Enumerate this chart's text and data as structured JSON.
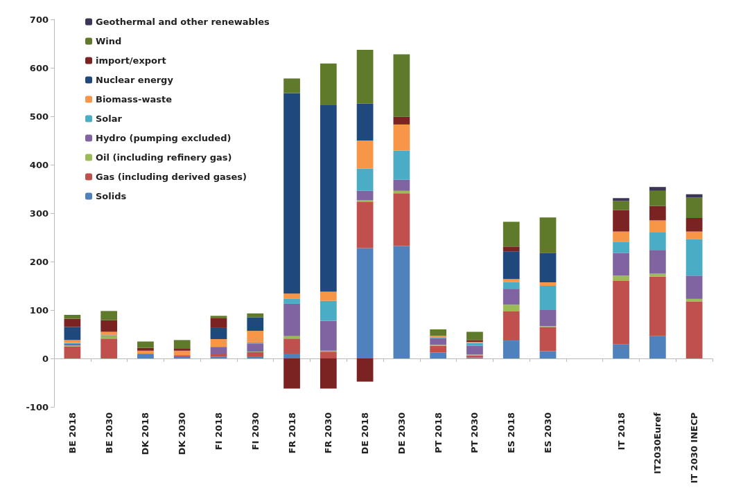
{
  "chart_data": {
    "type": "bar",
    "stacked": true,
    "legend": "top left",
    "categories": [
      "BE 2018",
      "BE 2030",
      "DK 2018",
      "DK 2030",
      "FI 2018",
      "FI 2030",
      "FR 2018",
      "FR 2030",
      "DE 2018",
      "DE 2030",
      "PT 2018",
      "PT 2030",
      "ES 2018",
      "ES 2030",
      null,
      "IT 2018",
      "IT2030Euref",
      "IT 2030 INECP"
    ],
    "ylim": [
      -100,
      700
    ],
    "yticks": [
      -100,
      0,
      100,
      200,
      300,
      400,
      500,
      600,
      700
    ],
    "series": [
      {
        "name": "Solids",
        "color": "#4f81bd",
        "values": [
          0,
          0,
          9,
          3,
          4,
          3,
          10,
          0,
          228,
          232,
          12,
          2,
          37,
          15,
          null,
          29,
          46,
          0
        ]
      },
      {
        "name": "Gas (including derived gases)",
        "color": "#c0504d",
        "values": [
          25,
          41,
          1,
          3,
          6,
          10,
          31,
          14,
          95,
          109,
          14,
          4,
          60,
          50,
          null,
          131,
          123,
          118
        ]
      },
      {
        "name": "Oil (including refinery gas)",
        "color": "#9bbb59",
        "values": [
          2,
          5,
          0,
          0,
          0,
          1,
          5,
          2,
          4,
          5,
          2,
          2,
          14,
          2,
          null,
          11,
          6,
          5
        ]
      },
      {
        "name": "Hydro (pumping excluded)",
        "color": "#8064a2",
        "values": [
          3,
          1,
          0,
          1,
          14,
          17,
          67,
          62,
          19,
          23,
          14,
          18,
          33,
          33,
          null,
          47,
          49,
          48
        ]
      },
      {
        "name": "Solar",
        "color": "#4bacc6",
        "values": [
          2,
          1,
          0,
          0,
          0,
          2,
          10,
          41,
          46,
          60,
          2,
          6,
          14,
          50,
          null,
          23,
          36,
          75
        ]
      },
      {
        "name": "Biomass-waste",
        "color": "#f79646",
        "values": [
          6,
          7,
          6,
          9,
          16,
          24,
          11,
          19,
          58,
          54,
          3,
          2,
          6,
          7,
          null,
          21,
          25,
          16
        ]
      },
      {
        "name": "Nuclear energy",
        "color": "#1f497d",
        "values": [
          27,
          0,
          0,
          0,
          23,
          28,
          414,
          385,
          76,
          0,
          0,
          0,
          57,
          60,
          null,
          0,
          0,
          0
        ]
      },
      {
        "name": "import/export",
        "color": "#7b2323",
        "values": [
          17,
          24,
          6,
          4,
          20,
          0,
          -62,
          -62,
          -48,
          16,
          0,
          4,
          10,
          1,
          null,
          44,
          30,
          28
        ]
      },
      {
        "name": "Wind",
        "color": "#5f7a2a",
        "values": [
          8,
          19,
          13,
          18,
          5,
          8,
          30,
          86,
          111,
          129,
          13,
          17,
          51,
          73,
          null,
          19,
          31,
          42
        ]
      },
      {
        "name": "Geothermal and other renewables",
        "color": "#3b3656",
        "values": [
          0,
          0,
          0,
          0,
          0,
          0,
          0,
          0,
          0,
          0,
          0,
          0,
          0,
          0,
          null,
          6,
          8,
          7
        ]
      }
    ]
  }
}
